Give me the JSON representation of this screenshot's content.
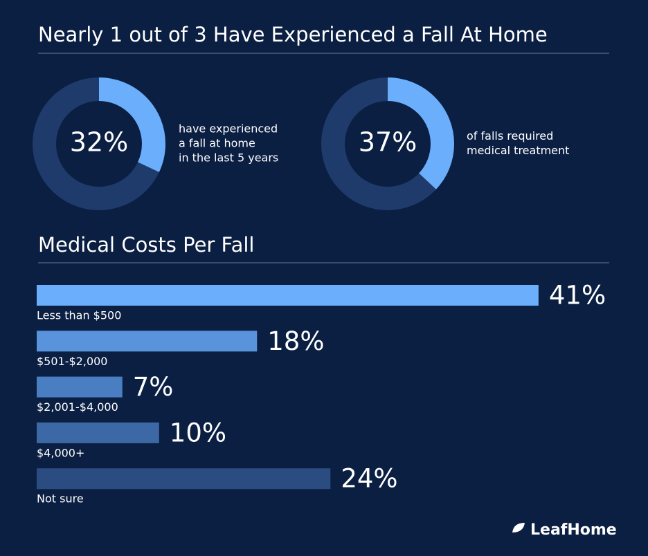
{
  "header": {
    "title": "Nearly 1 out of 3 Have Experienced a Fall At Home"
  },
  "chart_data": [
    {
      "type": "donut",
      "values": [
        32
      ],
      "value_labels": [
        "32%"
      ],
      "color": "#6aaefc",
      "track_color": "#1f3b6b",
      "caption": [
        "have experienced",
        "a fall at home",
        "in the last 5 years"
      ]
    },
    {
      "type": "donut",
      "values": [
        37
      ],
      "value_labels": [
        "37%"
      ],
      "color": "#6aaefc",
      "track_color": "#1f3b6b",
      "caption": [
        "of falls required",
        "medical treatment"
      ]
    },
    {
      "type": "hbar",
      "title": "Medical Costs Per Fall",
      "categories": [
        "Less than $500",
        "$501-$2,000",
        "$2,001-$4,000",
        "$4,000+",
        "Not sure"
      ],
      "values": [
        41,
        18,
        7,
        10,
        24
      ],
      "value_labels": [
        "41%",
        "18%",
        "7%",
        "10%",
        "24%"
      ],
      "colors": [
        "#6aaefc",
        "#5893dc",
        "#4a7ec2",
        "#3d68a6",
        "#2b4c80"
      ]
    }
  ],
  "footer": {
    "brand": "LeafHome"
  }
}
